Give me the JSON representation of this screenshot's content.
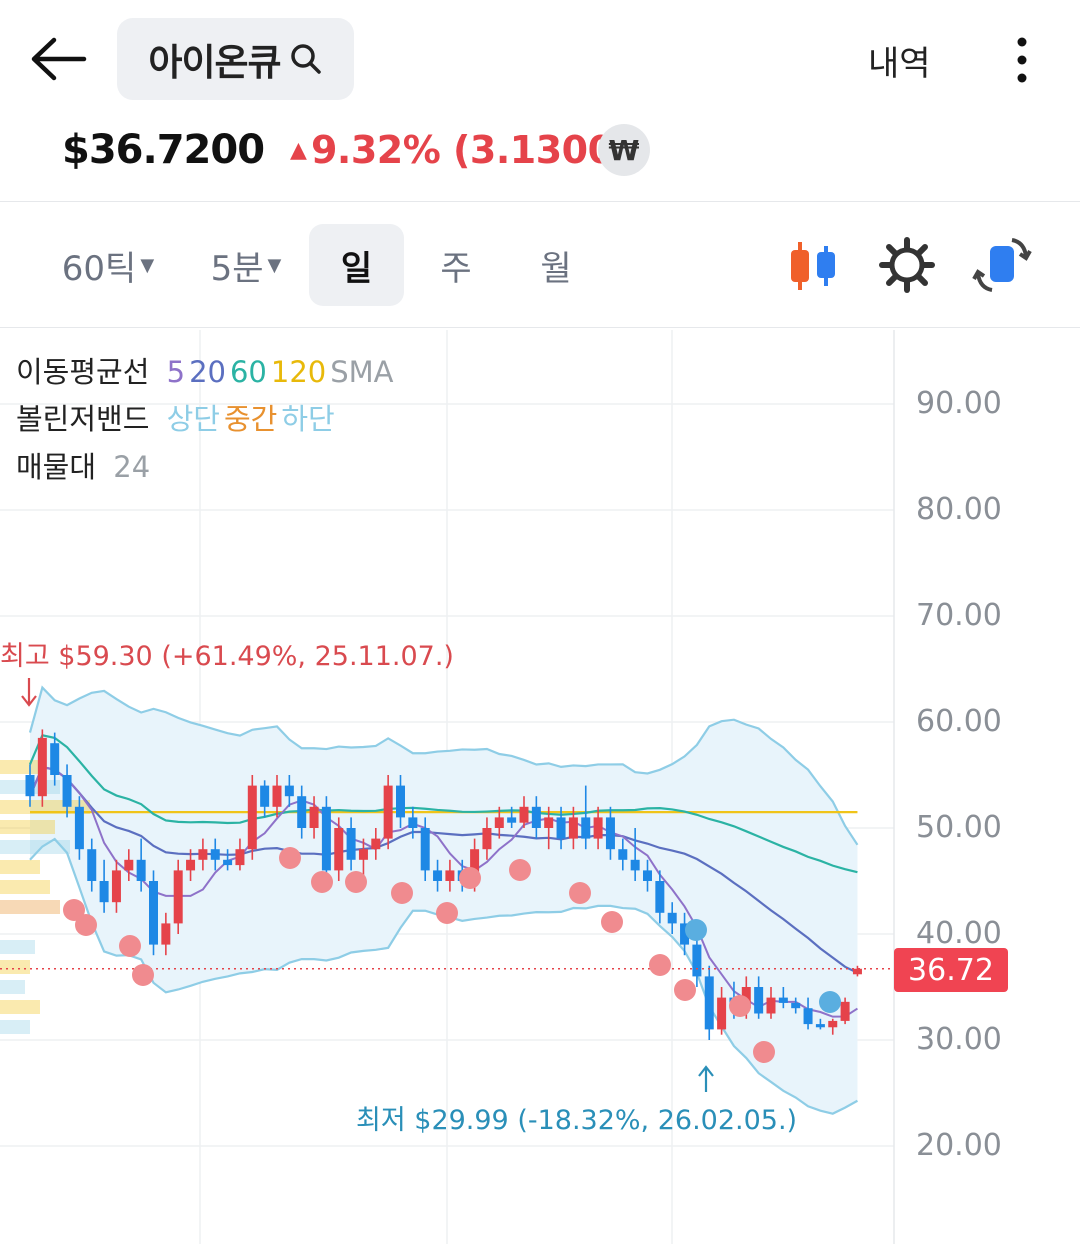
{
  "header": {
    "back_icon": "arrow-left-icon",
    "title": "아이온큐",
    "search_icon": "search-icon",
    "history_label": "내역",
    "more_icon": "more-vertical-icon"
  },
  "quote": {
    "price": "$36.7200",
    "change_arrow": "▲",
    "change": "9.32% (3.1300)",
    "currency_label": "₩",
    "up_color": "#e5434a"
  },
  "toolbar": {
    "tick_label": "60틱",
    "minute_label": "5분",
    "day_label": "일",
    "week_label": "주",
    "month_label": "월",
    "candle_icon": "candlestick-icon",
    "settings_icon": "gear-icon",
    "rotate_icon": "rotate-screen-icon"
  },
  "legend": {
    "ma_label": "이동평균선",
    "ma_5": "5",
    "ma_20": "20",
    "ma_60": "60",
    "ma_120": "120",
    "ma_type": "SMA",
    "bb_label": "볼린저밴드",
    "bb_upper": "상단",
    "bb_middle": "중간",
    "bb_lower": "하단",
    "vp_label": "매물대",
    "vp_value": "24",
    "colors": {
      "ma5": "#8e72c9",
      "ma20": "#5b6fc0",
      "ma60": "#2bb3a4",
      "ma120": "#f0c419",
      "sma": "#9aa0a6",
      "bb_band": "#8ecde6",
      "bb_mid": "#e8912f"
    }
  },
  "chart_data": {
    "type": "candlestick",
    "y_ticks": [
      "90.00",
      "80.00",
      "70.00",
      "60.00",
      "50.00",
      "40.00",
      "30.00",
      "20.00"
    ],
    "ylim": [
      15,
      95
    ],
    "current_price_label": "36.72",
    "high_annotation": "최고 $59.30 (+61.49%, 25.11.07.)",
    "low_annotation": "최저 $29.99 (-18.32%, 26.02.05.)",
    "up_color": "#e5434a",
    "down_color": "#1e88e5",
    "candles": [
      {
        "o": 55,
        "h": 56,
        "l": 52,
        "c": 53
      },
      {
        "o": 53,
        "h": 59.3,
        "l": 52,
        "c": 58.5
      },
      {
        "o": 58,
        "h": 59,
        "l": 54,
        "c": 55
      },
      {
        "o": 55,
        "h": 56,
        "l": 51,
        "c": 52
      },
      {
        "o": 52,
        "h": 53,
        "l": 47,
        "c": 48
      },
      {
        "o": 48,
        "h": 49,
        "l": 44,
        "c": 45
      },
      {
        "o": 45,
        "h": 47,
        "l": 42,
        "c": 43
      },
      {
        "o": 43,
        "h": 47,
        "l": 42,
        "c": 46
      },
      {
        "o": 46,
        "h": 48,
        "l": 45,
        "c": 47
      },
      {
        "o": 47,
        "h": 49,
        "l": 44,
        "c": 45
      },
      {
        "o": 45,
        "h": 46,
        "l": 38,
        "c": 39
      },
      {
        "o": 39,
        "h": 42,
        "l": 38,
        "c": 41
      },
      {
        "o": 41,
        "h": 47,
        "l": 40,
        "c": 46
      },
      {
        "o": 46,
        "h": 48,
        "l": 45,
        "c": 47
      },
      {
        "o": 47,
        "h": 49,
        "l": 46,
        "c": 48
      },
      {
        "o": 48,
        "h": 49,
        "l": 46,
        "c": 47
      },
      {
        "o": 47,
        "h": 48,
        "l": 46,
        "c": 46.5
      },
      {
        "o": 46.5,
        "h": 49,
        "l": 46,
        "c": 48
      },
      {
        "o": 48,
        "h": 55,
        "l": 47,
        "c": 54
      },
      {
        "o": 54,
        "h": 54.5,
        "l": 51,
        "c": 52
      },
      {
        "o": 52,
        "h": 55,
        "l": 51,
        "c": 54
      },
      {
        "o": 54,
        "h": 55,
        "l": 52,
        "c": 53
      },
      {
        "o": 53,
        "h": 54,
        "l": 49,
        "c": 50
      },
      {
        "o": 50,
        "h": 53,
        "l": 49,
        "c": 52
      },
      {
        "o": 52,
        "h": 53,
        "l": 45,
        "c": 46
      },
      {
        "o": 46,
        "h": 51,
        "l": 45,
        "c": 50
      },
      {
        "o": 50,
        "h": 51,
        "l": 46,
        "c": 47
      },
      {
        "o": 47,
        "h": 49,
        "l": 45,
        "c": 48
      },
      {
        "o": 48,
        "h": 50,
        "l": 47,
        "c": 49
      },
      {
        "o": 49,
        "h": 55,
        "l": 48,
        "c": 54
      },
      {
        "o": 54,
        "h": 55,
        "l": 50,
        "c": 51
      },
      {
        "o": 51,
        "h": 52,
        "l": 49,
        "c": 50
      },
      {
        "o": 50,
        "h": 51,
        "l": 45,
        "c": 46
      },
      {
        "o": 46,
        "h": 47,
        "l": 44,
        "c": 45
      },
      {
        "o": 45,
        "h": 47,
        "l": 44,
        "c": 46
      },
      {
        "o": 46,
        "h": 47,
        "l": 44,
        "c": 45
      },
      {
        "o": 45,
        "h": 49,
        "l": 44,
        "c": 48
      },
      {
        "o": 48,
        "h": 51,
        "l": 47,
        "c": 50
      },
      {
        "o": 50,
        "h": 52,
        "l": 49,
        "c": 51
      },
      {
        "o": 51,
        "h": 52,
        "l": 50,
        "c": 50.5
      },
      {
        "o": 50.5,
        "h": 53,
        "l": 50,
        "c": 52
      },
      {
        "o": 52,
        "h": 53,
        "l": 49,
        "c": 50
      },
      {
        "o": 50,
        "h": 52,
        "l": 48,
        "c": 51
      },
      {
        "o": 51,
        "h": 52,
        "l": 48,
        "c": 49
      },
      {
        "o": 49,
        "h": 52,
        "l": 48,
        "c": 51
      },
      {
        "o": 51,
        "h": 54,
        "l": 48,
        "c": 49
      },
      {
        "o": 49,
        "h": 52,
        "l": 48,
        "c": 51
      },
      {
        "o": 51,
        "h": 52,
        "l": 47,
        "c": 48
      },
      {
        "o": 48,
        "h": 49,
        "l": 46,
        "c": 47
      },
      {
        "o": 47,
        "h": 50,
        "l": 45,
        "c": 46
      },
      {
        "o": 46,
        "h": 47,
        "l": 44,
        "c": 45
      },
      {
        "o": 45,
        "h": 46,
        "l": 41,
        "c": 42
      },
      {
        "o": 42,
        "h": 43,
        "l": 40,
        "c": 41
      },
      {
        "o": 41,
        "h": 42,
        "l": 38,
        "c": 39
      },
      {
        "o": 39,
        "h": 40,
        "l": 35,
        "c": 36
      },
      {
        "o": 36,
        "h": 37,
        "l": 30,
        "c": 31
      },
      {
        "o": 31,
        "h": 35,
        "l": 30.5,
        "c": 34
      },
      {
        "o": 34,
        "h": 35.5,
        "l": 32,
        "c": 33
      },
      {
        "o": 33,
        "h": 36,
        "l": 32,
        "c": 35
      },
      {
        "o": 35,
        "h": 36,
        "l": 32,
        "c": 32.5
      },
      {
        "o": 32.5,
        "h": 35,
        "l": 32,
        "c": 34
      },
      {
        "o": 34,
        "h": 35,
        "l": 33,
        "c": 33.5
      },
      {
        "o": 33.5,
        "h": 34,
        "l": 32.5,
        "c": 33
      },
      {
        "o": 33,
        "h": 34,
        "l": 31,
        "c": 31.5
      },
      {
        "o": 31.5,
        "h": 32,
        "l": 31,
        "c": 31.2
      },
      {
        "o": 31.2,
        "h": 32,
        "l": 30.5,
        "c": 31.8
      },
      {
        "o": 31.8,
        "h": 34,
        "l": 31.5,
        "c": 33.6
      },
      {
        "o": 36.2,
        "h": 37,
        "l": 36,
        "c": 36.72
      }
    ]
  }
}
